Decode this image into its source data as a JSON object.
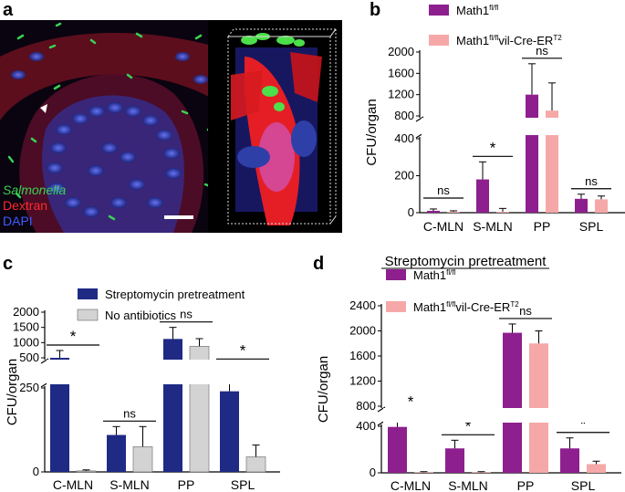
{
  "panels": {
    "a": {
      "letter": "a",
      "labels": {
        "salmonella": "Salmonella",
        "dextran": "Dextran",
        "dapi": "DAPI"
      },
      "colors": {
        "salmonella": "#39d353",
        "dextran": "#ff2a2a",
        "dapi": "#3f5bff"
      }
    },
    "b": {
      "letter": "b"
    },
    "c": {
      "letter": "c"
    },
    "d": {
      "letter": "d",
      "header": "Streptomycin pretreatment"
    }
  },
  "chart_data": [
    {
      "id": "b",
      "type": "bar",
      "categories": [
        "C-MLN",
        "S-MLN",
        "PP",
        "SPL"
      ],
      "ylabel": "CFU/organ",
      "axis_break": {
        "lower_ticks": [
          0,
          200,
          400
        ],
        "upper_ticks": [
          800,
          1200,
          1600,
          2000
        ]
      },
      "series": [
        {
          "name": "Math1fl/fl",
          "legend_base": "Math1",
          "legend_sup": "fl/fl",
          "color": "#8e1f8e",
          "values": [
            10,
            180,
            1200,
            75
          ],
          "errors": [
            10,
            95,
            580,
            25
          ]
        },
        {
          "name": "Math1fl/flvil-Cre-ERT2",
          "legend_base": "Math1",
          "legend_sup": "fl/fl",
          "legend_mid": "vil-Cre-ER",
          "legend_sup2": "T2",
          "color": "#f6a8a8",
          "values": [
            5,
            5,
            900,
            72
          ],
          "errors": [
            5,
            18,
            520,
            18
          ]
        }
      ],
      "significance": [
        "ns",
        "*",
        "ns",
        "ns"
      ]
    },
    {
      "id": "c",
      "type": "bar",
      "categories": [
        "C-MLN",
        "S-MLN",
        "PP",
        "SPL"
      ],
      "ylabel": "CFU/organ",
      "axis_break": {
        "lower_ticks": [
          0,
          250
        ],
        "upper_ticks": [
          500,
          1000,
          1500,
          2000
        ]
      },
      "series": [
        {
          "name": "Streptomycin pretreatment",
          "color": "#1f2a85",
          "values": [
            500,
            110,
            1120,
            240
          ],
          "errors": [
            240,
            25,
            380,
            40
          ]
        },
        {
          "name": "No antibiotics",
          "color": "#d3d3d3",
          "values": [
            3,
            75,
            880,
            45
          ],
          "errors": [
            3,
            60,
            250,
            35
          ]
        }
      ],
      "significance": [
        "*",
        "ns",
        "ns",
        "*"
      ]
    },
    {
      "id": "d",
      "type": "bar",
      "categories": [
        "C-MLN",
        "S-MLN",
        "PP",
        "SPL"
      ],
      "ylabel": "CFU/organ",
      "axis_break": {
        "lower_ticks": [
          0,
          400
        ],
        "upper_ticks": [
          800,
          1200,
          1600,
          2000,
          2400
        ]
      },
      "series": [
        {
          "name": "Math1fl/fl",
          "legend_base": "Math1",
          "legend_sup": "fl/fl",
          "color": "#8e1f8e",
          "values": [
            470,
            210,
            1970,
            210
          ],
          "errors": [
            180,
            70,
            140,
            90
          ]
        },
        {
          "name": "Math1fl/flvil-Cre-ERT2",
          "legend_base": "Math1",
          "legend_sup": "fl/fl",
          "legend_mid": "vil-Cre-ER",
          "legend_sup2": "T2",
          "color": "#f6a8a8",
          "values": [
            5,
            5,
            1800,
            75
          ],
          "errors": [
            5,
            5,
            200,
            25
          ]
        }
      ],
      "significance": [
        "*",
        "*",
        "ns",
        "*"
      ]
    }
  ]
}
